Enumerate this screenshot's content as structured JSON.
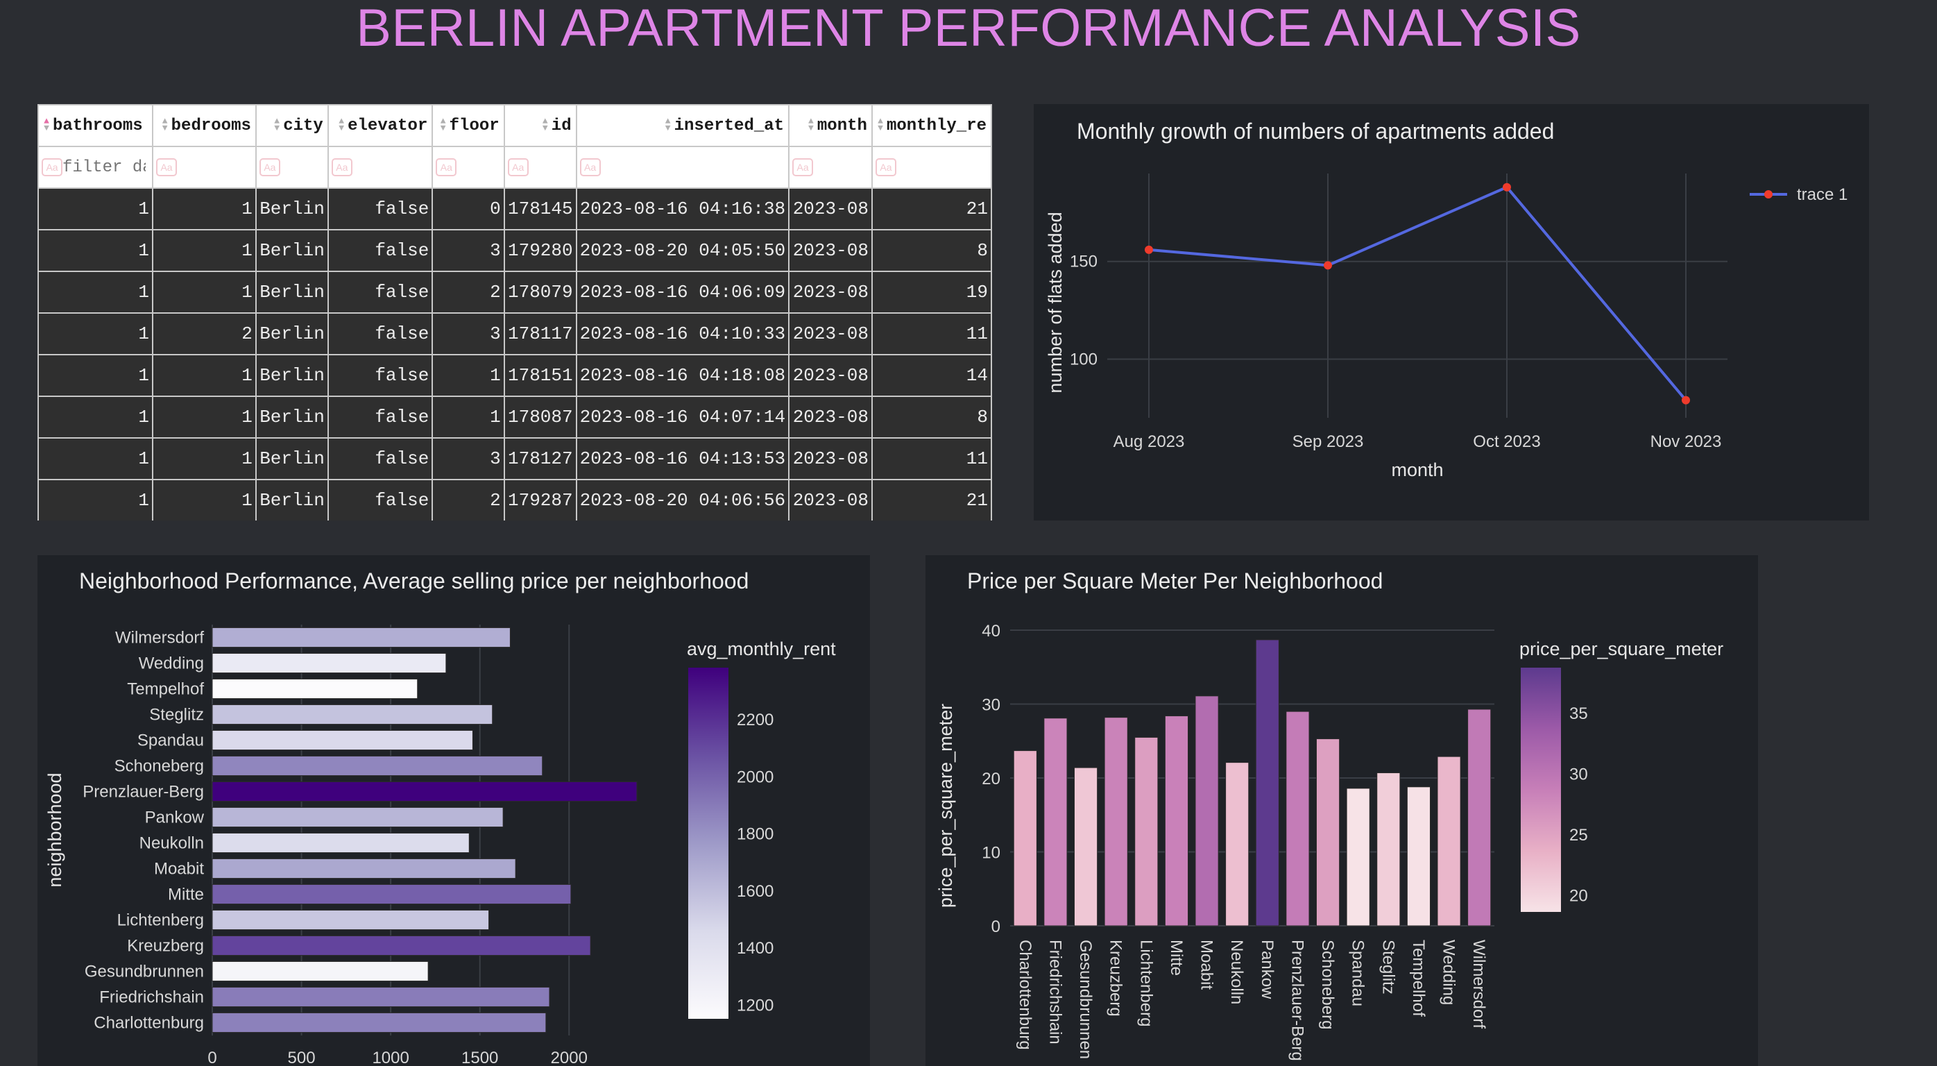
{
  "page": {
    "title": "BERLIN APARTMENT PERFORMANCE ANALYSIS"
  },
  "table": {
    "columns": [
      "bathrooms",
      "bedrooms",
      "city",
      "elevator",
      "floor",
      "id",
      "inserted_at",
      "month",
      "monthly_re"
    ],
    "filter_placeholder": "filter da",
    "case_icon_label": "Aa",
    "rows": [
      [
        "1",
        "1",
        "Berlin",
        "false",
        "0",
        "178145",
        "2023-08-16 04:16:38",
        "2023-08",
        "21"
      ],
      [
        "1",
        "1",
        "Berlin",
        "false",
        "3",
        "179280",
        "2023-08-20 04:05:50",
        "2023-08",
        "8"
      ],
      [
        "1",
        "1",
        "Berlin",
        "false",
        "2",
        "178079",
        "2023-08-16 04:06:09",
        "2023-08",
        "19"
      ],
      [
        "1",
        "2",
        "Berlin",
        "false",
        "3",
        "178117",
        "2023-08-16 04:10:33",
        "2023-08",
        "11"
      ],
      [
        "1",
        "1",
        "Berlin",
        "false",
        "1",
        "178151",
        "2023-08-16 04:18:08",
        "2023-08",
        "14"
      ],
      [
        "1",
        "1",
        "Berlin",
        "false",
        "1",
        "178087",
        "2023-08-16 04:07:14",
        "2023-08",
        "8"
      ],
      [
        "1",
        "1",
        "Berlin",
        "false",
        "3",
        "178127",
        "2023-08-16 04:13:53",
        "2023-08",
        "11"
      ],
      [
        "1",
        "1",
        "Berlin",
        "false",
        "2",
        "179287",
        "2023-08-20 04:06:56",
        "2023-08",
        "21"
      ]
    ]
  },
  "chart_data": [
    {
      "type": "line",
      "title": "Monthly growth of numbers of apartments added",
      "xlabel": "month",
      "ylabel": "number of flats added",
      "categories": [
        "Aug 2023",
        "Sep 2023",
        "Oct 2023",
        "Nov 2023"
      ],
      "series": [
        {
          "name": "trace 1",
          "values": [
            156,
            148,
            188,
            79
          ]
        }
      ],
      "yticks": [
        100,
        150
      ],
      "ylim": [
        70,
        195
      ],
      "line_color": "#5468e0",
      "marker_color": "#ef3b2c",
      "grid": true,
      "legend": "top-right"
    },
    {
      "type": "bar",
      "orientation": "horizontal",
      "title": "Neighborhood Performance, Average selling price per neighborhood",
      "xlabel": "",
      "ylabel": "neighborhood",
      "categories": [
        "Charlottenburg",
        "Friedrichshain",
        "Gesundbrunnen",
        "Kreuzberg",
        "Lichtenberg",
        "Mitte",
        "Moabit",
        "Neukolln",
        "Pankow",
        "Prenzlauer-Berg",
        "Schoneberg",
        "Spandau",
        "Steglitz",
        "Tempelhof",
        "Wedding",
        "Wilmersdorf"
      ],
      "values": [
        1870,
        1890,
        1210,
        2120,
        1550,
        2010,
        1700,
        1440,
        1630,
        2380,
        1850,
        1460,
        1570,
        1150,
        1310,
        1670
      ],
      "xticks": [
        0,
        500,
        1000,
        1500,
        2000
      ],
      "xlim": [
        0,
        2450
      ],
      "colorscale_title": "avg_monthly_rent",
      "colorscale_ticks": [
        1200,
        1400,
        1600,
        1800,
        2000,
        2200
      ],
      "colorscale_range": [
        1150,
        2380
      ],
      "colorscale": [
        "#fcfbfd",
        "#dadaeb",
        "#9e9ac8",
        "#6a51a3",
        "#3f007d"
      ],
      "grid": true
    },
    {
      "type": "bar",
      "title": "Price per Square Meter Per Neighborhood",
      "xlabel": "",
      "ylabel": "price_per_square_meter",
      "categories": [
        "Charlottenburg",
        "Friedrichshain",
        "Gesundbrunnen",
        "Kreuzberg",
        "Lichtenberg",
        "Mitte",
        "Moabit",
        "Neukolln",
        "Pankow",
        "Prenzlauer-Berg",
        "Schoneberg",
        "Spandau",
        "Steglitz",
        "Tempelhof",
        "Wedding",
        "Wilmersdorf"
      ],
      "values": [
        23.7,
        28.1,
        21.4,
        28.2,
        25.5,
        28.4,
        31.1,
        22.1,
        38.7,
        29.0,
        25.3,
        18.6,
        20.7,
        18.8,
        22.9,
        29.3
      ],
      "yticks": [
        0,
        10,
        20,
        30,
        40
      ],
      "ylim": [
        0,
        40
      ],
      "colorscale_title": "price_per_square_meter",
      "colorscale_ticks": [
        20,
        25,
        30,
        35
      ],
      "colorscale_range": [
        18.6,
        38.7
      ],
      "colorscale": [
        "#f7e3e7",
        "#e8b0c6",
        "#c77fb8",
        "#9c5aa8",
        "#5d3a8e"
      ],
      "grid": true
    }
  ]
}
